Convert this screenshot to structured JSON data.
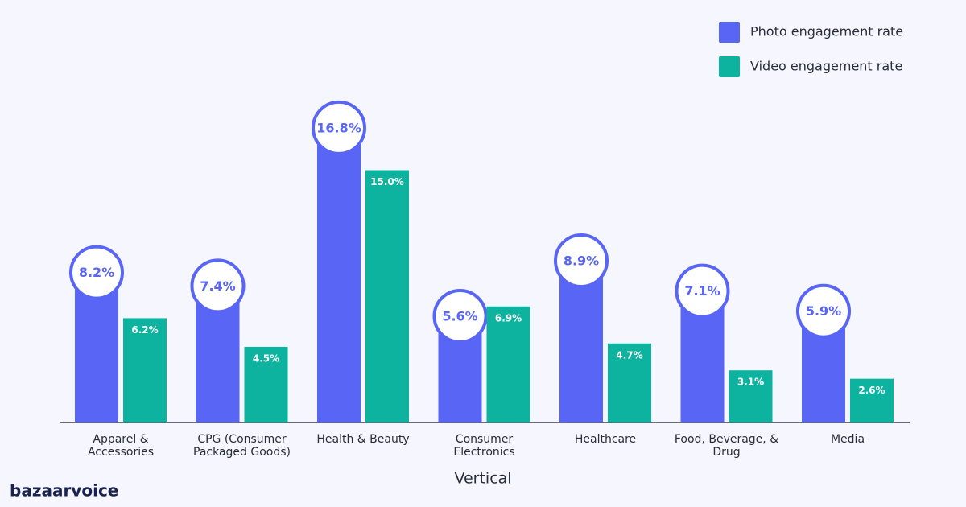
{
  "brand": "bazaarvoice",
  "chart_data": {
    "type": "bar",
    "x_label": "Vertical",
    "categories": [
      "Apparel & Accessories",
      "CPG (Consumer Packaged Goods)",
      "Health & Beauty",
      "Consumer Electronics",
      "Healthcare",
      "Food, Beverage, & Drug",
      "Media"
    ],
    "series": [
      {
        "name": "Photo engagement rate",
        "color": "#5865f5",
        "values": [
          8.2,
          7.4,
          16.8,
          5.6,
          8.9,
          7.1,
          5.9
        ],
        "value_labels": [
          "8.2%",
          "7.4%",
          "16.8%",
          "5.6%",
          "8.9%",
          "7.1%",
          "5.9%"
        ]
      },
      {
        "name": "Video engagement rate",
        "color": "#0db39f",
        "values": [
          6.2,
          4.5,
          15.0,
          6.9,
          4.7,
          3.1,
          2.6
        ],
        "value_labels": [
          "6.2%",
          "4.5%",
          "15.0%",
          "6.9%",
          "4.7%",
          "3.1%",
          "2.6%"
        ]
      }
    ],
    "legend": "top-right"
  }
}
